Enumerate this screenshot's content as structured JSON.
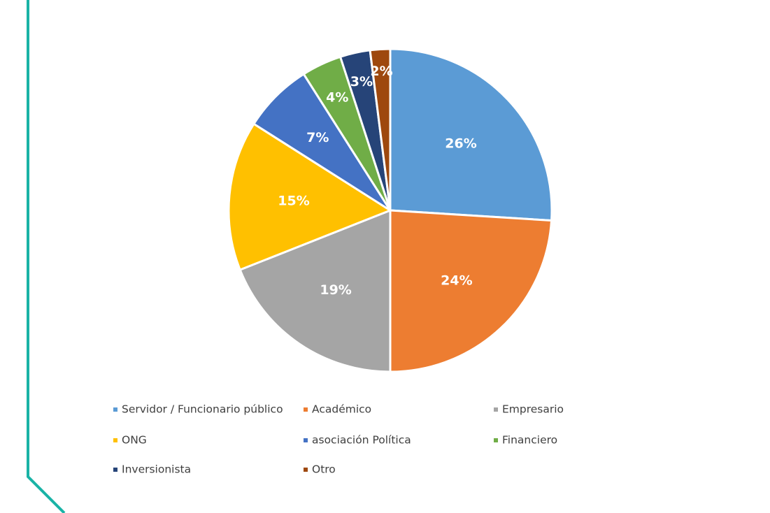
{
  "chart_data": {
    "type": "pie",
    "categories": [
      "Servidor / Funcionario público",
      "Académico",
      "Empresario",
      "ONG",
      "asociación Política",
      "Financiero",
      "Inversionista",
      "Otro"
    ],
    "values": [
      26,
      24,
      19,
      15,
      7,
      4,
      3,
      2
    ],
    "value_labels": [
      "26%",
      "24%",
      "19%",
      "15%",
      "7%",
      "4%",
      "3%",
      "2%"
    ],
    "colors": [
      "#5b9bd5",
      "#ed7d31",
      "#a5a5a5",
      "#ffc000",
      "#4472c4",
      "#70ad47",
      "#264478",
      "#9e480e"
    ],
    "legend": "bottom"
  }
}
